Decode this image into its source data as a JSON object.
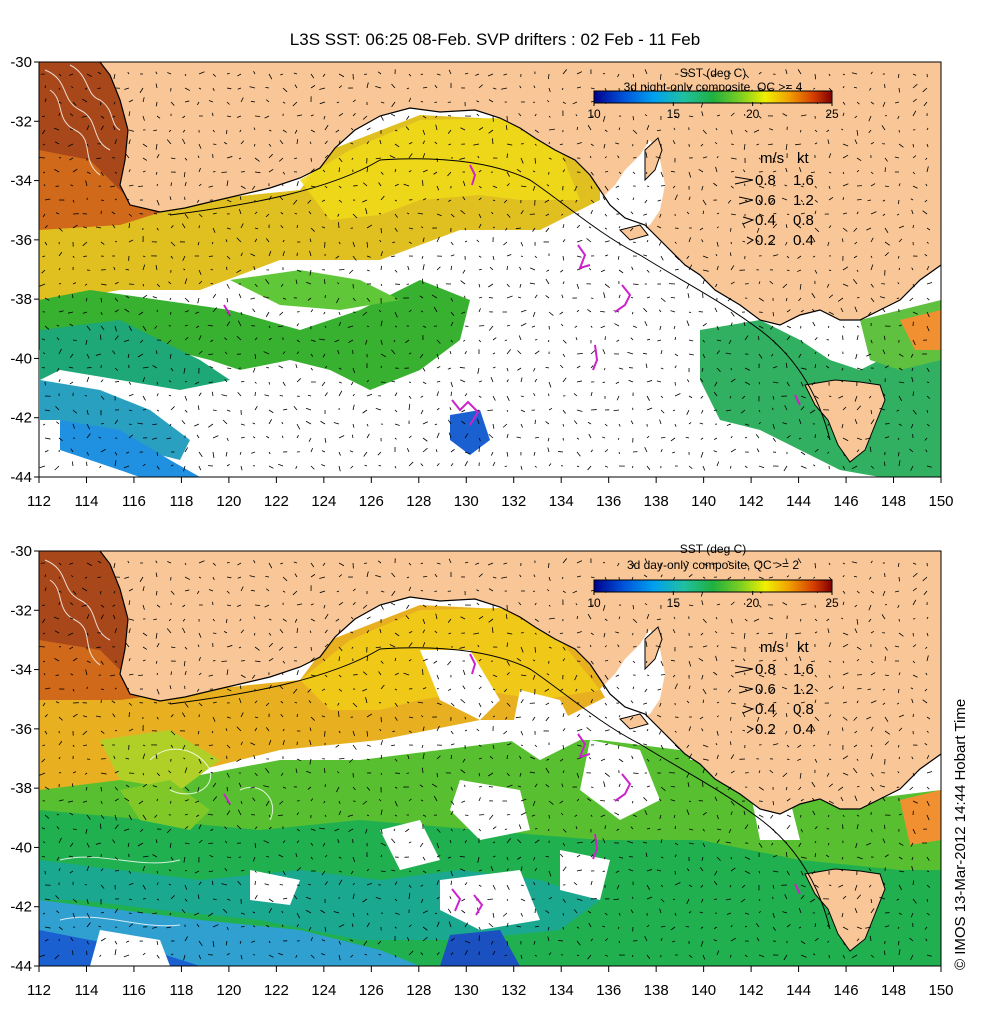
{
  "title": "L3S SST: 06:25 08-Feb. SVP drifters : 02 Feb - 11 Feb",
  "credit": "© IMOS 13-Mar-2012 14:44 Hobart Time",
  "x_ticks": [
    "112",
    "114",
    "116",
    "118",
    "120",
    "122",
    "124",
    "126",
    "128",
    "130",
    "132",
    "134",
    "136",
    "138",
    "140",
    "142",
    "144",
    "146",
    "148",
    "150"
  ],
  "y_ticks": [
    "-30",
    "-32",
    "-34",
    "-36",
    "-38",
    "-40",
    "-42",
    "-44"
  ],
  "x_range": [
    112,
    150
  ],
  "y_range": [
    -44,
    -30
  ],
  "colorbar": {
    "ticks": [
      "10",
      "15",
      "20",
      "25"
    ],
    "range": [
      10,
      25
    ]
  },
  "vector_legend": {
    "header_ms": "m/s",
    "header_kt": "kt",
    "rows": [
      {
        "ms": "0.8",
        "kt": "1.6"
      },
      {
        "ms": "0.6",
        "kt": "1.2"
      },
      {
        "ms": "0.4",
        "kt": "0.8"
      },
      {
        "ms": "0.2",
        "kt": "0.4"
      }
    ]
  },
  "panels": [
    {
      "legend_title": "SST (deg C)",
      "legend_subtitle": "3d night-only composite, QC >= 4",
      "coverage": "sparse"
    },
    {
      "legend_title": "SST (deg C)",
      "legend_subtitle": "3d day-only composite, QC >= 2",
      "coverage": "dense"
    }
  ],
  "colors": {
    "land": "#f9c797",
    "drifter": "#cc22cc",
    "frame": "#000000"
  }
}
